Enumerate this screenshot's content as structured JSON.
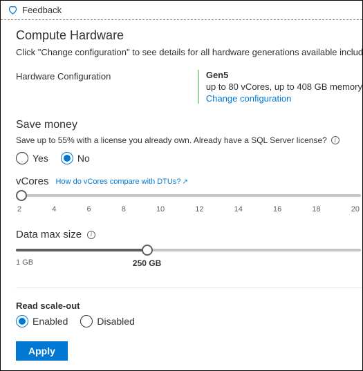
{
  "feedback": {
    "label": "Feedback"
  },
  "compute": {
    "title": "Compute Hardware",
    "desc": "Click \"Change configuration\" to see details for all hardware generations available including memo",
    "config_label": "Hardware Configuration",
    "gen": "Gen5",
    "spec": "up to 80 vCores, up to 408 GB memory",
    "change_link": "Change configuration"
  },
  "save_money": {
    "title": "Save money",
    "desc": "Save up to 55% with a license you already own. Already have a SQL Server license?",
    "yes": "Yes",
    "no": "No",
    "selected": "no"
  },
  "vcores": {
    "label": "vCores",
    "link": "How do vCores compare with DTUs?",
    "ticks": [
      "2",
      "4",
      "6",
      "8",
      "10",
      "12",
      "14",
      "16",
      "18",
      "20"
    ],
    "value_pct": 0
  },
  "data_max": {
    "label": "Data max size",
    "min_label": "1 GB",
    "value_label": "250 GB",
    "value_pct": 38
  },
  "read_scale": {
    "title": "Read scale-out",
    "enabled": "Enabled",
    "disabled": "Disabled",
    "selected": "enabled"
  },
  "apply": "Apply"
}
